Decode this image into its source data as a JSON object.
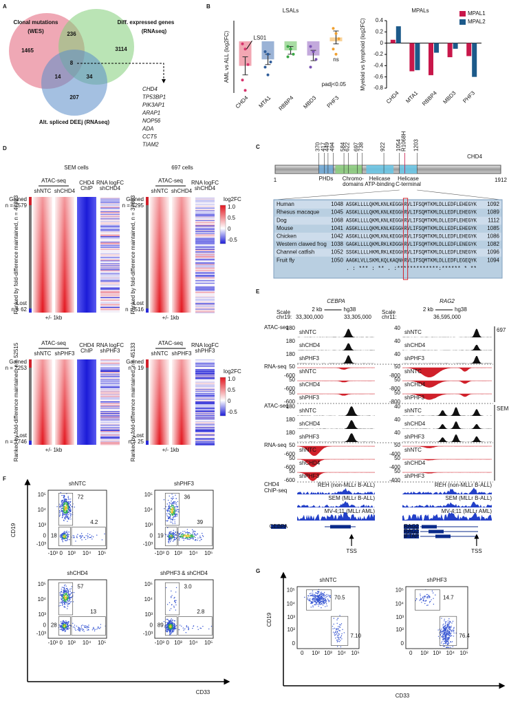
{
  "figure": {
    "A": {
      "label": "A",
      "sets": [
        {
          "name": "Clonal mutations",
          "method": "(WES)"
        },
        {
          "name": "Diff. expressed genes",
          "method": "(RNAseq)"
        },
        {
          "name": "Alt. spliced DEEj (RNAseq)"
        }
      ],
      "counts": {
        "mut_only": 1465,
        "mut_de": 236,
        "de_only": 3114,
        "all": 8,
        "mut_as": 14,
        "de_as": 34,
        "as_only": 207
      },
      "genes": [
        "CHD4",
        "TP53BP1",
        "PIK3AP1",
        "ARAP1",
        "NOP56",
        "ADA",
        "CCT5",
        "TIAM2"
      ]
    },
    "B": {
      "label": "B"
    },
    "C": {
      "label": "C",
      "protein": "CHD4",
      "length_start": 1,
      "length_end": 1912,
      "positions": [
        370,
        417,
        449,
        494,
        584,
        622,
        697,
        738,
        922,
        1054,
        1203
      ],
      "mutation": "R1068H",
      "domains": [
        [
          "PHDs"
        ],
        [
          "Chromo-",
          "domains"
        ],
        [
          "Helicase",
          "ATP-binding"
        ],
        [
          "Helicase",
          "C-terminal"
        ]
      ],
      "alignment": [
        {
          "species": "Human",
          "start": 1048,
          "sequence": "ASGKLLLLQKMLKNLKEGGHRVLIFSQMTKMLDLLEDFLEHEGYK",
          "end": 1092
        },
        {
          "species": "Rhesus macaque",
          "start": 1045,
          "sequence": "ASGKLLLLQKMLKNLKEGGHRVLIFSQMTKMLDLLEDFLEHEGYK",
          "end": 1089
        },
        {
          "species": "Dog",
          "start": 1068,
          "sequence": "ASGKLLLLQKMLKNLKEGGHRVLIFSQMTKMLDLLEDFLEHEGYK",
          "end": 1112
        },
        {
          "species": "Mouse",
          "start": 1041,
          "sequence": "ASGKLLLLQKMLKNLKEGGHRVLIFSQMTKMLDLLEDFLEHEGYK",
          "end": 1085
        },
        {
          "species": "Chicken",
          "start": 1042,
          "sequence": "ASGKLLLLQKMLKNLKEGGHRVLIFSQMTKMLDLLEDFLEHEGYK",
          "end": 1086
        },
        {
          "species": "Western clawed frog",
          "start": 1038,
          "sequence": "GAGKLLLLQKMLRKLKDGGHRVLIFSQMTKMLDLLEDFLENEGYK",
          "end": 1082
        },
        {
          "species": "Channel catfish",
          "start": 1052,
          "sequence": "SSGKLLLLHKMLRKLKEGGHRVLIFSQMTKMLDLLEDFLENEGYK",
          "end": 1096
        },
        {
          "species": "Fruit fly",
          "start": 1050,
          "sequence": "AAGKLVLLSKMLKQLKAQNHRVLIFSQMTKMLDLLEDFLEGEQYK",
          "end": 1094
        }
      ],
      "consensus": ". : ***  :  ** .  :*************:******   *  **"
    },
    "D": {
      "label": "D",
      "cells": [
        "SEM cells",
        "697 cells"
      ],
      "assay": "ATAC-seq",
      "columns": {
        "ntc": "shNTC",
        "chd4": "shCHD4",
        "phf3": "shPHF3",
        "chip": [
          "CHD4",
          "ChIP"
        ],
        "rna_chd4": [
          "RNA logFC",
          "shCHD4"
        ],
        "rna_phf3": [
          "RNA logFC",
          "shPHF3"
        ]
      },
      "window": "+/- 1kb",
      "colorbar": {
        "title": "log2FC",
        "ticks": [
          "1.0",
          "0.5",
          "0",
          "-0.5"
        ]
      },
      "blocks": [
        {
          "gained": "Gained",
          "gained_n": "n = 2579",
          "ranked": "Ranked by fold-difference maintained, n = 47923",
          "lost": "Lost",
          "lost_n": "n = 62"
        },
        {
          "gained": "Gained",
          "gained_n": "n = 5295",
          "ranked": "Ranked by fold-difference maintained, n = 37803",
          "lost": "Lost",
          "lost_n": "n = 516"
        },
        {
          "gained": "Gained",
          "gained_n": "n = 2253",
          "ranked": "Ranked by fold-difference maintained; n = 52515",
          "lost": "Lost",
          "lost_n": "n = 1746"
        },
        {
          "gained": "Gained",
          "gained_n": "n = 19",
          "ranked": "Ranked by fold-difference maintained; n = 45133",
          "lost": "Lost",
          "lost_n": "n = 25"
        }
      ]
    },
    "E": {
      "label": "E",
      "cells": [
        "697",
        "SEM"
      ],
      "groups": [
        [
          "ATAC-seq"
        ],
        [
          "RNA-seq"
        ],
        [
          "ATAC-seq"
        ],
        [
          "RNA-seq"
        ],
        [
          "CHD4",
          "ChIP-seq"
        ]
      ],
      "samples": [
        "shNTC",
        "shCHD4",
        "shPHF3"
      ],
      "chip_samples": [
        "REH (non-MLLr B-ALL)",
        "SEM (MLLr B-ALL)",
        "MV-4;11 (MLLr AML)"
      ],
      "tss": "TSS",
      "loci": [
        {
          "gene": "CEBPA",
          "scale": "Scale",
          "chrom": "chr19:",
          "bar": "2 kb",
          "genome": "hg38",
          "coords": [
            "33,300,000",
            "33,305,000"
          ],
          "atac_scale": "180",
          "rna_scales": [
            [
              "50",
              "-600"
            ],
            [
              "50",
              "-600"
            ]
          ],
          "annotation_genes": [
            "CEBPA"
          ]
        },
        {
          "gene": "RAG2",
          "scale": "Scale",
          "chrom": "chr11:",
          "bar": "2 kb",
          "genome": "hg38",
          "coords": [
            "36,595,000"
          ],
          "atac_scale": "40",
          "rna_scales": [
            [
              "50",
              "-800"
            ],
            [
              "50",
              "-400"
            ]
          ],
          "annotation_genes": [
            "RAG2",
            "RAG2",
            "IFTAP"
          ]
        }
      ]
    },
    "F": {
      "label": "F",
      "x_axis": "CD33",
      "y_axis": "CD19",
      "ticks": [
        "-10³",
        "0",
        "10³",
        "10⁴",
        "10⁵"
      ],
      "plots": [
        {
          "title": "shNTC",
          "gates": [
            "72",
            "18",
            "4.2"
          ]
        },
        {
          "title": "shPHF3",
          "gates": [
            "36",
            "19",
            "39"
          ]
        },
        {
          "title": "shCHD4",
          "gates": [
            "57",
            "28",
            "13"
          ]
        },
        {
          "title": "shPHF3 & shCHD4",
          "gates": [
            "3.0",
            "89",
            "2.8"
          ]
        }
      ]
    },
    "G": {
      "label": "G",
      "x_axis": "CD33",
      "y_axis": "CD19",
      "ticks": [
        "0",
        "10²",
        "10³",
        "10⁴",
        "10⁵"
      ],
      "plots": [
        {
          "title": "shNTC",
          "gates": [
            "70.5",
            "7.10"
          ]
        },
        {
          "title": "shPHF3",
          "gates": [
            "14.7",
            "76.4"
          ]
        }
      ]
    }
  },
  "chart_data": [
    {
      "type": "bar",
      "title": "LSALs",
      "y_label": "AML vs ALL (log2FC)",
      "categories": [
        "CHD4",
        "MTA1",
        "RBBP4",
        "MBD3",
        "PHF3"
      ],
      "values": [
        -0.95,
        -0.7,
        -0.35,
        -0.55,
        0.15
      ],
      "errors": [
        0.35,
        0.2,
        0.15,
        0.2,
        0.25
      ],
      "points": [
        [
          -0.1,
          -0.3,
          -0.9,
          -1.5,
          -1.9
        ],
        [
          -0.4,
          -0.5,
          -0.8,
          -1.0,
          -1.3
        ],
        [
          -0.2,
          -0.3,
          -0.5,
          -0.6
        ],
        [
          -0.2,
          -0.4,
          -0.7,
          -1.0
        ],
        [
          0.5,
          0.3,
          0.1,
          -0.3,
          -0.5
        ]
      ],
      "colors": [
        "#f2a7b3",
        "#9bb3d6",
        "#a8dca3",
        "#c3a9dc",
        "#f9d39a"
      ],
      "point_colors": [
        "#d6336c",
        "#2f5d9a",
        "#3aa845",
        "#7a52b3",
        "#f0a030"
      ],
      "ylim": [
        -2,
        0.8
      ],
      "annotations": {
        "sample": "LS01",
        "ns": "ns",
        "significance": "padj<0.05"
      }
    },
    {
      "type": "grouped_bar",
      "title": "MPALs",
      "y_label": "Myeloid vs lymphoid (log2FC)",
      "categories": [
        "CHD4",
        "MTA1",
        "RBBP4",
        "MBD3",
        "PHF3"
      ],
      "series": [
        {
          "name": "MPAL1",
          "color": "#c8174a",
          "values": [
            0.06,
            -0.5,
            -0.57,
            -0.25,
            -0.23
          ]
        },
        {
          "name": "MPAL2",
          "color": "#1c5a8a",
          "values": [
            0.3,
            -0.48,
            -0.17,
            -0.1,
            -0.6
          ]
        }
      ],
      "ylim": [
        -0.8,
        0.4
      ],
      "yticks": [
        -0.8,
        -0.6,
        -0.4,
        -0.2,
        0,
        0.2,
        0.4
      ],
      "legend": "upper right"
    }
  ]
}
